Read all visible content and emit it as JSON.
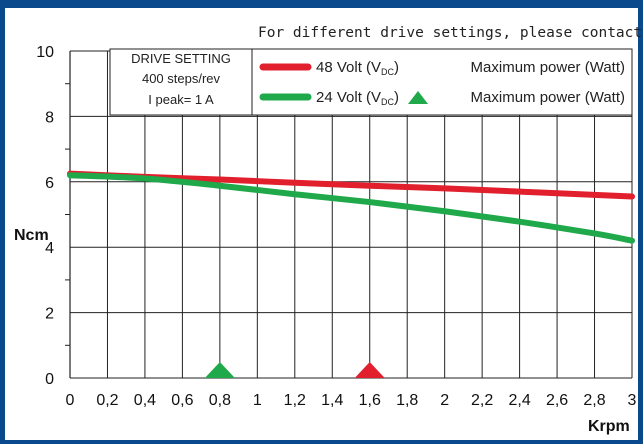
{
  "header_note": "For different drive settings, please contact R.T.A",
  "drive_setting": {
    "title": "DRIVE SETTING",
    "steps": "400 steps/rev",
    "peak": "I peak= 1 A"
  },
  "colors": {
    "frame": "#0a4a8c",
    "series_48v": "#e21f2d",
    "series_24v": "#1fa94a",
    "grid": "#222222"
  },
  "legend": [
    {
      "name_main": "48 Volt (V",
      "name_sub": "DC",
      "name_end": ")",
      "power_label": "Maximum power (Watt)",
      "marker": "none"
    },
    {
      "name_main": "24 Volt (V",
      "name_sub": "DC",
      "name_end": ")",
      "power_label": "Maximum power (Watt)",
      "marker": "triangle"
    }
  ],
  "chart_data": {
    "type": "line",
    "xlabel": "Krpm",
    "ylabel": "Ncm",
    "xlim": [
      0,
      3
    ],
    "ylim": [
      0,
      10
    ],
    "x_ticks": [
      "0",
      "0,2",
      "0,4",
      "0,6",
      "0,8",
      "1",
      "1,2",
      "1,4",
      "1,6",
      "1,8",
      "2",
      "2,2",
      "2,4",
      "2,6",
      "2,8",
      "3"
    ],
    "y_ticks": [
      "0",
      "2",
      "4",
      "6",
      "8",
      "10"
    ],
    "grid": true,
    "series": [
      {
        "name": "48 Volt (VDC)",
        "color": "#e21f2d",
        "x": [
          0,
          0.4,
          0.8,
          1.2,
          1.6,
          2.0,
          2.4,
          2.8,
          3.0
        ],
        "y": [
          6.25,
          6.15,
          6.07,
          5.97,
          5.88,
          5.8,
          5.7,
          5.6,
          5.55
        ],
        "max_power_krpm": 1.6
      },
      {
        "name": "24 Volt (VDC)",
        "color": "#1fa94a",
        "x": [
          0,
          0.4,
          0.8,
          1.2,
          1.6,
          2.0,
          2.4,
          2.8,
          3.0
        ],
        "y": [
          6.2,
          6.1,
          5.88,
          5.62,
          5.38,
          5.1,
          4.78,
          4.42,
          4.2
        ],
        "max_power_krpm": 0.8
      }
    ]
  }
}
